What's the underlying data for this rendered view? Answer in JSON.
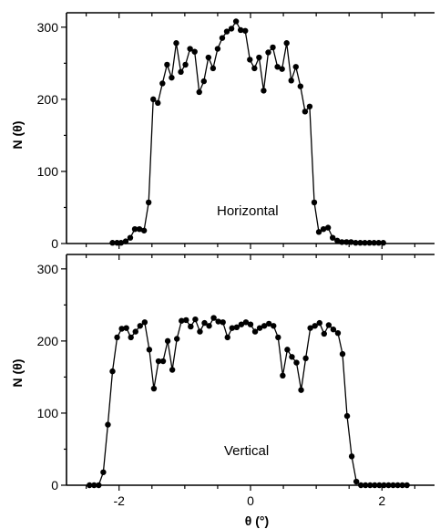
{
  "chart_data": [
    {
      "type": "line",
      "annotation": "Horizontal",
      "ylabel": "N (θ)",
      "xlabel": "",
      "xlim": [
        -2.8,
        2.8
      ],
      "ylim": [
        0,
        320
      ],
      "x_ticks": [
        "-2",
        "0",
        "2"
      ],
      "y_ticks": [
        "0",
        "100",
        "200",
        "300"
      ],
      "x_tick_values": [
        -2,
        0,
        2
      ],
      "y_tick_values": [
        0,
        100,
        200,
        300
      ],
      "series": [
        {
          "x": [
            -2.1,
            -2.03,
            -1.97,
            -1.9,
            -1.83,
            -1.76,
            -1.69,
            -1.62,
            -1.55,
            -1.48,
            -1.41,
            -1.34,
            -1.27,
            -1.2,
            -1.13,
            -1.06,
            -0.99,
            -0.92,
            -0.85,
            -0.78,
            -0.71,
            -0.64,
            -0.57,
            -0.5,
            -0.43,
            -0.36,
            -0.29,
            -0.22,
            -0.15,
            -0.08,
            -0.01,
            0.06,
            0.13,
            0.2,
            0.27,
            0.34,
            0.41,
            0.48,
            0.55,
            0.62,
            0.69,
            0.76,
            0.83,
            0.9,
            0.97,
            1.04,
            1.11,
            1.18,
            1.25,
            1.32,
            1.39,
            1.46,
            1.53,
            1.6,
            1.67,
            1.74,
            1.81,
            1.88,
            1.95,
            2.02
          ],
          "values": [
            1,
            1,
            1,
            3,
            8,
            20,
            20,
            18,
            57,
            200,
            195,
            222,
            248,
            230,
            278,
            238,
            248,
            270,
            266,
            210,
            225,
            258,
            243,
            270,
            285,
            294,
            298,
            308,
            296,
            295,
            255,
            243,
            258,
            212,
            265,
            272,
            245,
            242,
            278,
            226,
            245,
            218,
            183,
            190,
            57,
            16,
            20,
            22,
            8,
            4,
            2,
            2,
            2,
            1,
            1,
            1,
            1,
            1,
            1,
            1
          ]
        }
      ]
    },
    {
      "type": "line",
      "annotation": "Vertical",
      "ylabel": "N (θ)",
      "xlabel": "θ (°)",
      "xlim": [
        -2.8,
        2.8
      ],
      "ylim": [
        0,
        320
      ],
      "x_ticks": [
        "-2",
        "0",
        "2"
      ],
      "y_ticks": [
        "0",
        "100",
        "200",
        "300"
      ],
      "x_tick_values": [
        -2,
        0,
        2
      ],
      "y_tick_values": [
        0,
        100,
        200,
        300
      ],
      "series": [
        {
          "x": [
            -2.45,
            -2.38,
            -2.31,
            -2.24,
            -2.17,
            -2.1,
            -2.03,
            -1.96,
            -1.89,
            -1.82,
            -1.75,
            -1.68,
            -1.61,
            -1.54,
            -1.47,
            -1.4,
            -1.33,
            -1.26,
            -1.19,
            -1.12,
            -1.05,
            -0.98,
            -0.91,
            -0.84,
            -0.77,
            -0.7,
            -0.63,
            -0.56,
            -0.49,
            -0.42,
            -0.35,
            -0.28,
            -0.21,
            -0.14,
            -0.07,
            0.0,
            0.07,
            0.14,
            0.21,
            0.28,
            0.35,
            0.42,
            0.49,
            0.56,
            0.63,
            0.7,
            0.77,
            0.84,
            0.91,
            0.98,
            1.05,
            1.12,
            1.19,
            1.26,
            1.33,
            1.4,
            1.47,
            1.54,
            1.61,
            1.68,
            1.75,
            1.82,
            1.89,
            1.96,
            2.03,
            2.1,
            2.17,
            2.24,
            2.31,
            2.38
          ],
          "values": [
            0,
            0,
            0,
            18,
            84,
            158,
            205,
            217,
            218,
            205,
            213,
            221,
            226,
            188,
            134,
            172,
            172,
            200,
            160,
            203,
            228,
            229,
            220,
            230,
            213,
            225,
            221,
            232,
            227,
            226,
            205,
            218,
            219,
            223,
            226,
            223,
            213,
            218,
            221,
            224,
            221,
            205,
            152,
            188,
            178,
            170,
            132,
            176,
            218,
            221,
            225,
            210,
            222,
            216,
            211,
            182,
            96,
            40,
            5,
            0,
            0,
            0,
            0,
            0,
            0,
            0,
            0,
            0,
            0,
            0
          ]
        }
      ]
    }
  ]
}
